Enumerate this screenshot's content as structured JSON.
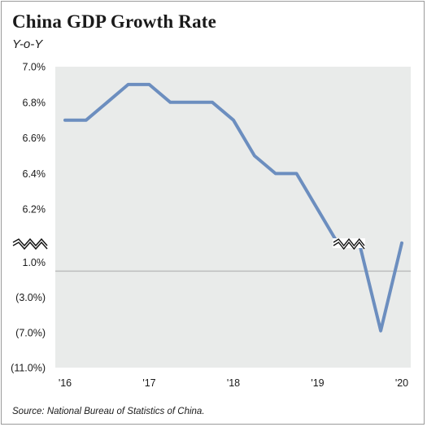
{
  "chart_data": {
    "type": "line",
    "title": "China GDP Growth Rate",
    "subtitle": "Y-o-Y",
    "source": "Source: National Bureau of Statistics of China.",
    "xlabel": "",
    "ylabel": "",
    "grid": false,
    "axis_break": true,
    "line_color": "#6c8ebf",
    "plot_background": "#e9ebea",
    "x_tick_labels": [
      "'16",
      "'17",
      "'18",
      "'19",
      "'20"
    ],
    "upper_y_ticks": [
      "7.0%",
      "6.8%",
      "6.6%",
      "6.4%",
      "6.2%"
    ],
    "lower_y_ticks": [
      "1.0%",
      "(3.0%)",
      "(7.0%)",
      "(11.0%)"
    ],
    "upper_ylim": [
      6.0,
      7.0
    ],
    "lower_ylim": [
      -11.0,
      3.0
    ],
    "x_range": [
      2016.0,
      2020.0
    ],
    "series": [
      {
        "x": [
          2016.0,
          2016.25,
          2016.5,
          2016.75,
          2017.0,
          2017.25,
          2017.5,
          2017.75,
          2018.0,
          2018.25,
          2018.5,
          2018.75,
          2019.0,
          2019.25,
          2019.5
        ],
        "y": [
          6.7,
          6.7,
          6.8,
          6.9,
          6.9,
          6.8,
          6.8,
          6.8,
          6.7,
          6.5,
          6.4,
          6.4,
          6.2,
          6.0,
          6.0
        ]
      },
      {
        "x": [
          2019.5,
          2019.75,
          2020.0
        ],
        "y": [
          3.0,
          -6.8,
          3.2
        ]
      }
    ]
  }
}
